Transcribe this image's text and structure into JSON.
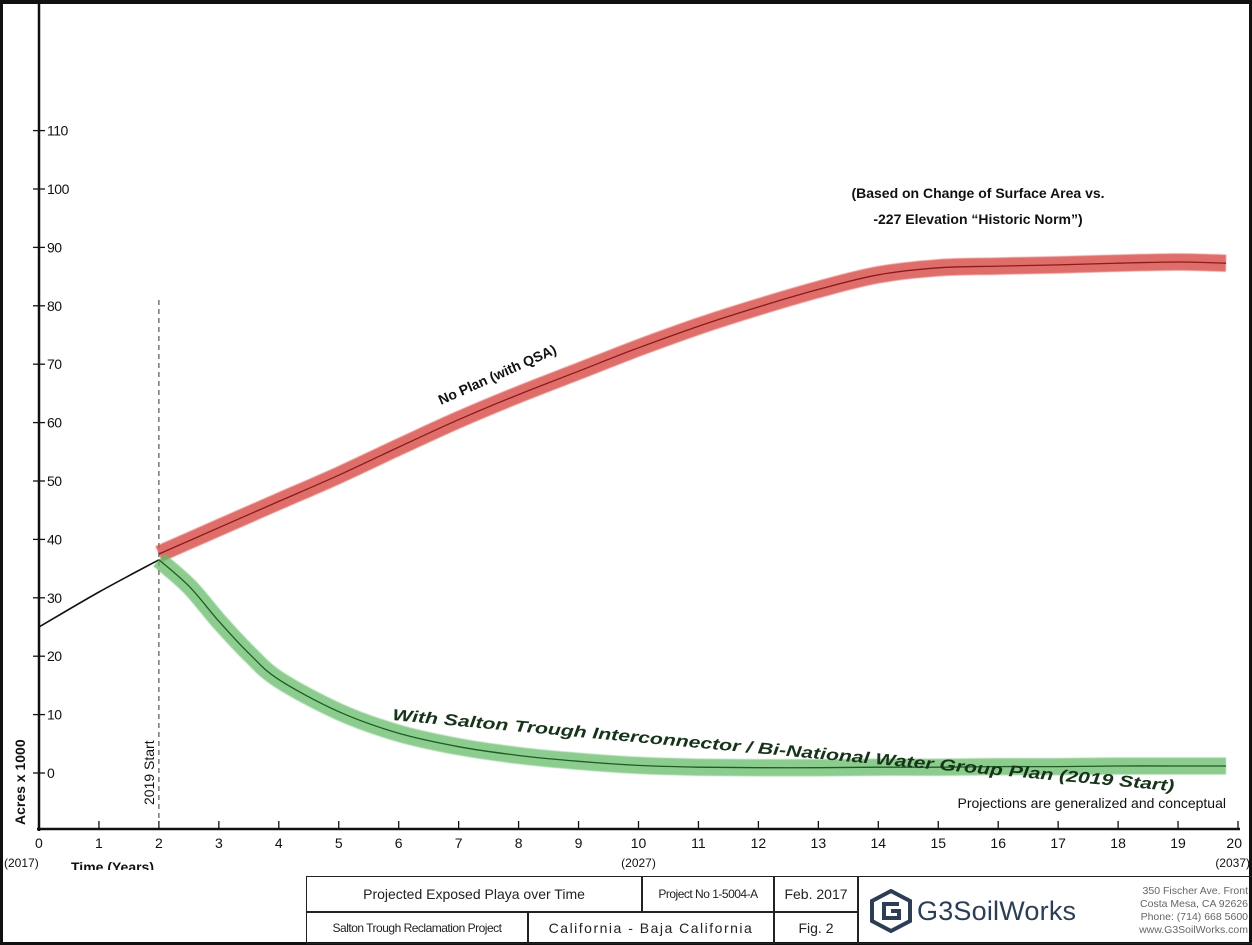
{
  "chart_data": {
    "type": "line",
    "title": "(Based on Change of Surface Area vs.\n-227 Elevation “Historic Norm”)",
    "title_lines": [
      "(Based on Change of Surface Area vs.",
      "-227 Elevation “Historic Norm”)"
    ],
    "xlabel": "Time (Years)",
    "ylabel": "Acres x 1000",
    "xlim": [
      0,
      20
    ],
    "ylim": [
      0,
      110
    ],
    "x_ticks": [
      "0",
      "1",
      "2",
      "3",
      "4",
      "5",
      "6",
      "7",
      "8",
      "9",
      "10",
      "11",
      "12",
      "13",
      "14",
      "15",
      "16",
      "17",
      "18",
      "19",
      "20"
    ],
    "x_ticks_values": [
      0,
      1,
      2,
      3,
      4,
      5,
      6,
      7,
      8,
      9,
      10,
      11,
      12,
      13,
      14,
      15,
      16,
      17,
      18,
      19,
      20
    ],
    "x_year_labels": [
      {
        "x": 0,
        "label": "(2017)"
      },
      {
        "x": 10,
        "label": "(2027)"
      },
      {
        "x": 20,
        "label": "(2037)"
      }
    ],
    "y_ticks": [
      "0",
      "10",
      "20",
      "30",
      "40",
      "50",
      "60",
      "70",
      "80",
      "90",
      "100",
      "110"
    ],
    "y_ticks_values": [
      0,
      10,
      20,
      30,
      40,
      50,
      60,
      70,
      80,
      90,
      100,
      110
    ],
    "grid": false,
    "vline": {
      "x": 2,
      "label": "2019 Start",
      "style": "dashed"
    },
    "series": [
      {
        "name": "",
        "color": "#111111",
        "x": [
          0,
          1,
          2
        ],
        "y": [
          25,
          31,
          36.5
        ]
      },
      {
        "name": "No Plan (with QSA)",
        "color": "#c0504d",
        "band_color": "#d9534f",
        "x": [
          2,
          3,
          4,
          5,
          6,
          7,
          8,
          9,
          10,
          11,
          12,
          13,
          14,
          15,
          16,
          17,
          18,
          19,
          19.8
        ],
        "y": [
          37.5,
          42,
          46.5,
          51,
          55.8,
          60.5,
          64.8,
          68.8,
          72.8,
          76.5,
          79.8,
          82.8,
          85.3,
          86.5,
          86.8,
          87,
          87.3,
          87.5,
          87.3
        ]
      },
      {
        "name": "With Salton Trough Interconnector / Bi-National Water Group Plan (2019 Start)",
        "color": "#2e7d32",
        "band_color": "#66bb6a",
        "x": [
          2,
          2.5,
          3,
          3.5,
          4,
          5,
          6,
          7,
          8,
          9,
          10,
          11,
          12,
          13,
          14,
          15,
          16,
          17,
          18,
          19,
          19.8
        ],
        "y": [
          36.5,
          32,
          26,
          20.5,
          16,
          10.5,
          6.8,
          4.5,
          3,
          2,
          1.3,
          1,
          0.9,
          0.9,
          1,
          1,
          1.1,
          1.1,
          1.2,
          1.2,
          1.2
        ]
      }
    ],
    "annotations": [
      "Projections are generalized and conceptual"
    ]
  },
  "title_block": {
    "title": "Projected Exposed Playa over Time",
    "project_no": "Project No 1-5004-A",
    "date": "Feb. 2017",
    "project_name": "Salton Trough Reclamation Project",
    "location": "California  -  Baja California",
    "figure": "Fig. 2",
    "company": "G3SoilWorks",
    "address_lines": [
      "350 Fischer Ave. Front",
      "Costa Mesa, CA 92626",
      "Phone: (714) 668 5600",
      "www.G3SoilWorks.com"
    ]
  }
}
